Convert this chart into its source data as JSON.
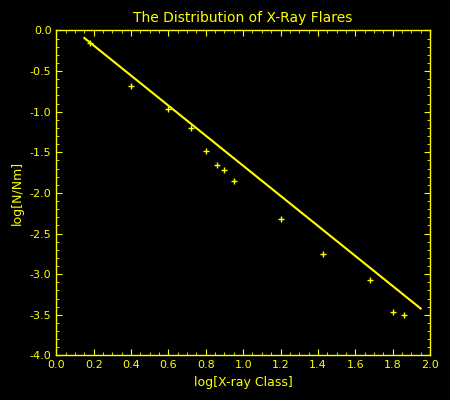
{
  "title": "The Distribution of X-Ray Flares",
  "xlabel": "log[X-ray Class]",
  "ylabel": "log[N/Nm]",
  "background_color": "#000000",
  "foreground_color": "#ffff00",
  "xlim": [
    0.0,
    2.0
  ],
  "ylim": [
    -4.0,
    0.0
  ],
  "xticks": [
    0.0,
    0.2,
    0.4,
    0.6,
    0.8,
    1.0,
    1.2,
    1.4,
    1.6,
    1.8,
    2.0
  ],
  "yticks": [
    0.0,
    -0.5,
    -1.0,
    -1.5,
    -2.0,
    -2.5,
    -3.0,
    -3.5,
    -4.0
  ],
  "data_x": [
    0.18,
    0.4,
    0.6,
    0.72,
    0.8,
    0.86,
    0.9,
    0.95,
    1.2,
    1.43,
    1.68,
    1.8,
    1.86
  ],
  "data_y": [
    -0.15,
    -0.68,
    -0.97,
    -1.2,
    -1.48,
    -1.65,
    -1.72,
    -1.85,
    -2.32,
    -2.75,
    -3.07,
    -3.47,
    -3.5
  ],
  "line_x": [
    0.15,
    1.95
  ],
  "line_slope": -1.85,
  "line_intercept": 0.185,
  "title_fontsize": 10,
  "label_fontsize": 9,
  "tick_fontsize": 8,
  "font_family": "monospace",
  "marker": "+"
}
